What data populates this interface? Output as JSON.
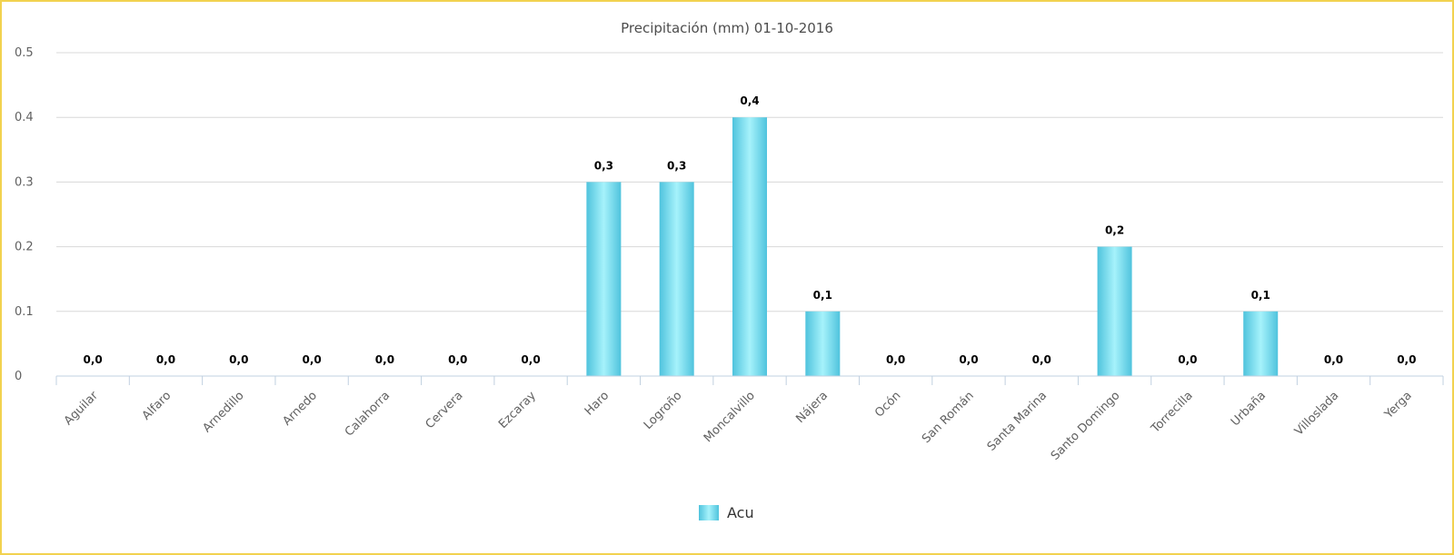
{
  "chart_data": {
    "type": "bar",
    "title": "Precipitación (mm) 01-10-2016",
    "xlabel": "",
    "ylabel": "",
    "ylim": [
      0,
      0.5
    ],
    "yticks": [
      "0",
      "0.1",
      "0.2",
      "0.3",
      "0.4",
      "0.5"
    ],
    "ytick_values": [
      0,
      0.1,
      0.2,
      0.3,
      0.4,
      0.5
    ],
    "categories": [
      "Aguilar",
      "Alfaro",
      "Arnedillo",
      "Arnedo",
      "Calahorra",
      "Cervera",
      "Ezcaray",
      "Haro",
      "Logroño",
      "Moncalvillo",
      "Nájera",
      "Ocón",
      "San Román",
      "Santa Marina",
      "Santo Domingo",
      "Torrecilla",
      "Urbaña",
      "Villoslada",
      "Yerga"
    ],
    "series": [
      {
        "name": "Acu",
        "values": [
          0,
          0,
          0,
          0,
          0,
          0,
          0,
          0.3,
          0.3,
          0.4,
          0.1,
          0,
          0,
          0,
          0.2,
          0,
          0.1,
          0,
          0
        ],
        "labels": [
          "0,0",
          "0,0",
          "0,0",
          "0,0",
          "0,0",
          "0,0",
          "0,0",
          "0,3",
          "0,3",
          "0,4",
          "0,1",
          "0,0",
          "0,0",
          "0,0",
          "0,2",
          "0,0",
          "0,1",
          "0,0",
          "0,0"
        ]
      }
    ],
    "grid": true,
    "legend": "bottom-center",
    "colors": {
      "bar_edge": "#4fc3dd",
      "bar_mid": "#a6f2fb",
      "grid": "#d8d8d8",
      "axis": "#c0d0e0",
      "border": "#f2d24f"
    }
  }
}
